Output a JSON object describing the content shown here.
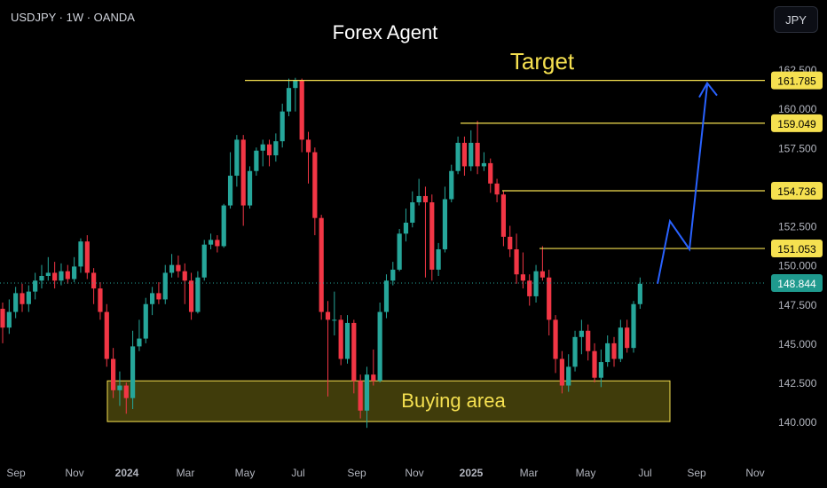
{
  "header": {
    "symbol": "USDJPY · 1W · OANDA",
    "currency": "JPY"
  },
  "colors": {
    "up": "#26a69a",
    "down": "#f23645",
    "yellow": "#f5e050",
    "blue": "#2962ff",
    "axis_text": "#b2b5be"
  },
  "chart_data": {
    "type": "candlestick",
    "title": "Forex Agent",
    "annotations": {
      "target": "Target",
      "buying_area": "Buying area"
    },
    "y_axis": {
      "ticks": [
        "162.500",
        "160.000",
        "157.500",
        "155.000",
        "152.500",
        "150.000",
        "147.500",
        "145.000",
        "142.500",
        "140.000"
      ],
      "range": [
        138.5,
        165.0
      ]
    },
    "x_axis": {
      "ticks": [
        "Sep",
        "Nov",
        "2024",
        "Mar",
        "May",
        "Jul",
        "Sep",
        "Nov",
        "2025",
        "Mar",
        "May",
        "Jul",
        "Sep",
        "Nov"
      ]
    },
    "target_levels": [
      "161.785",
      "159.049",
      "154.736",
      "151.053"
    ],
    "current_price": "148.844",
    "buying_zone": [
      140.0,
      142.6
    ],
    "projection": [
      [
        148.8,
        152.8
      ],
      [
        151.0,
        161.5
      ]
    ],
    "candles": [
      [
        147.2,
        146.0,
        147.6,
        145.0
      ],
      [
        146.0,
        147.0,
        147.8,
        145.6
      ],
      [
        147.0,
        148.2,
        148.6,
        146.6
      ],
      [
        148.2,
        147.5,
        148.8,
        147.0
      ],
      [
        147.5,
        148.3,
        148.7,
        147.0
      ],
      [
        148.3,
        149.0,
        149.5,
        147.8
      ],
      [
        149.0,
        149.3,
        150.0,
        148.5
      ],
      [
        149.3,
        149.5,
        150.5,
        149.0
      ],
      [
        149.5,
        149.0,
        150.2,
        148.5
      ],
      [
        149.0,
        149.6,
        150.1,
        148.7
      ],
      [
        149.6,
        149.1,
        150.0,
        148.8
      ],
      [
        149.1,
        149.9,
        150.5,
        148.9
      ],
      [
        149.9,
        151.5,
        151.7,
        149.5
      ],
      [
        151.5,
        149.5,
        151.9,
        149.1
      ],
      [
        149.5,
        148.5,
        149.8,
        147.5
      ],
      [
        148.5,
        147.0,
        148.9,
        146.5
      ],
      [
        147.0,
        144.0,
        147.5,
        143.5
      ],
      [
        144.0,
        142.0,
        144.7,
        141.5
      ],
      [
        142.0,
        142.3,
        143.2,
        141.0
      ],
      [
        142.3,
        141.5,
        142.5,
        140.5
      ],
      [
        141.5,
        144.8,
        145.8,
        140.8
      ],
      [
        144.8,
        145.3,
        146.5,
        144.5
      ],
      [
        145.3,
        147.5,
        147.9,
        145.0
      ],
      [
        147.5,
        148.2,
        148.6,
        146.8
      ],
      [
        148.2,
        147.8,
        148.9,
        147.5
      ],
      [
        147.8,
        149.5,
        150.0,
        147.5
      ],
      [
        149.5,
        150.0,
        150.7,
        149.2
      ],
      [
        150.0,
        149.6,
        150.6,
        149.2
      ],
      [
        149.6,
        149.0,
        150.1,
        147.5
      ],
      [
        149.0,
        147.0,
        149.5,
        146.5
      ],
      [
        147.0,
        149.2,
        149.6,
        146.9
      ],
      [
        149.2,
        151.3,
        151.6,
        149.0
      ],
      [
        151.3,
        151.6,
        152.0,
        151.0
      ],
      [
        151.6,
        151.2,
        151.9,
        150.8
      ],
      [
        151.2,
        153.8,
        153.9,
        151.1
      ],
      [
        153.8,
        155.7,
        157.2,
        153.6
      ],
      [
        155.7,
        158.0,
        158.3,
        155.0
      ],
      [
        158.0,
        153.8,
        158.3,
        152.5
      ],
      [
        153.8,
        156.0,
        156.3,
        153.6
      ],
      [
        156.0,
        157.3,
        157.5,
        155.7
      ],
      [
        157.3,
        157.7,
        158.0,
        156.3
      ],
      [
        157.7,
        157.0,
        158.0,
        156.3
      ],
      [
        157.0,
        157.9,
        158.4,
        156.6
      ],
      [
        157.9,
        159.8,
        160.3,
        157.5
      ],
      [
        159.8,
        161.3,
        161.9,
        159.5
      ],
      [
        161.3,
        161.8,
        161.95,
        159.8
      ],
      [
        161.8,
        158.0,
        161.9,
        157.2
      ],
      [
        158.0,
        157.2,
        158.5,
        155.2
      ],
      [
        157.2,
        153.0,
        157.5,
        151.9
      ],
      [
        153.0,
        147.0,
        153.2,
        146.5
      ],
      [
        147.0,
        146.5,
        147.7,
        141.6
      ],
      [
        146.5,
        146.5,
        148.3,
        145.5
      ],
      [
        146.5,
        144.0,
        146.8,
        143.6
      ],
      [
        144.0,
        146.3,
        146.8,
        143.7
      ],
      [
        146.3,
        142.6,
        146.5,
        141.8
      ],
      [
        142.6,
        140.7,
        143.0,
        140.2
      ],
      [
        140.7,
        143.0,
        143.5,
        139.6
      ],
      [
        143.0,
        142.6,
        144.6,
        142.3
      ],
      [
        142.6,
        147.0,
        147.6,
        142.5
      ],
      [
        147.0,
        149.0,
        149.4,
        146.6
      ],
      [
        149.0,
        149.7,
        150.2,
        148.7
      ],
      [
        149.7,
        152.0,
        152.3,
        149.6
      ],
      [
        152.0,
        152.7,
        153.6,
        151.5
      ],
      [
        152.7,
        154.0,
        154.7,
        152.4
      ],
      [
        154.0,
        154.4,
        155.5,
        153.8
      ],
      [
        154.4,
        154.0,
        155.0,
        149.2
      ],
      [
        154.0,
        149.7,
        154.5,
        149.0
      ],
      [
        149.7,
        151.0,
        151.4,
        149.3
      ],
      [
        151.0,
        154.2,
        155.0,
        150.8
      ],
      [
        154.2,
        156.0,
        156.4,
        154.0
      ],
      [
        156.0,
        157.8,
        158.2,
        155.8
      ],
      [
        157.8,
        156.3,
        158.2,
        155.7
      ],
      [
        156.3,
        157.8,
        158.6,
        156.0
      ],
      [
        157.8,
        156.3,
        159.2,
        155.8
      ],
      [
        156.3,
        156.5,
        157.2,
        156.0
      ],
      [
        156.5,
        155.2,
        156.8,
        154.6
      ],
      [
        155.2,
        154.5,
        155.5,
        154.0
      ],
      [
        154.5,
        151.8,
        154.7,
        151.2
      ],
      [
        151.8,
        151.0,
        152.5,
        150.5
      ],
      [
        151.0,
        149.4,
        152.0,
        148.8
      ],
      [
        149.4,
        149.0,
        150.8,
        148.5
      ],
      [
        149.0,
        148.0,
        149.4,
        147.4
      ],
      [
        148.0,
        149.6,
        150.0,
        147.6
      ],
      [
        149.6,
        149.2,
        151.2,
        149.0
      ],
      [
        149.2,
        146.5,
        149.7,
        145.5
      ],
      [
        146.5,
        144.0,
        146.8,
        143.1
      ],
      [
        144.0,
        142.3,
        144.5,
        141.8
      ],
      [
        142.3,
        143.5,
        144.3,
        141.9
      ],
      [
        143.5,
        145.4,
        145.8,
        143.2
      ],
      [
        145.4,
        145.8,
        146.5,
        144.3
      ],
      [
        145.8,
        144.5,
        146.2,
        143.9
      ],
      [
        144.5,
        142.8,
        145.0,
        142.5
      ],
      [
        142.8,
        143.8,
        144.6,
        142.2
      ],
      [
        143.8,
        145.0,
        145.5,
        143.5
      ],
      [
        145.0,
        144.0,
        145.4,
        143.5
      ],
      [
        144.0,
        146.0,
        146.5,
        143.8
      ],
      [
        146.0,
        144.7,
        146.5,
        144.4
      ],
      [
        144.7,
        147.5,
        147.7,
        144.4
      ],
      [
        147.5,
        148.8,
        149.2,
        147.2
      ]
    ]
  }
}
